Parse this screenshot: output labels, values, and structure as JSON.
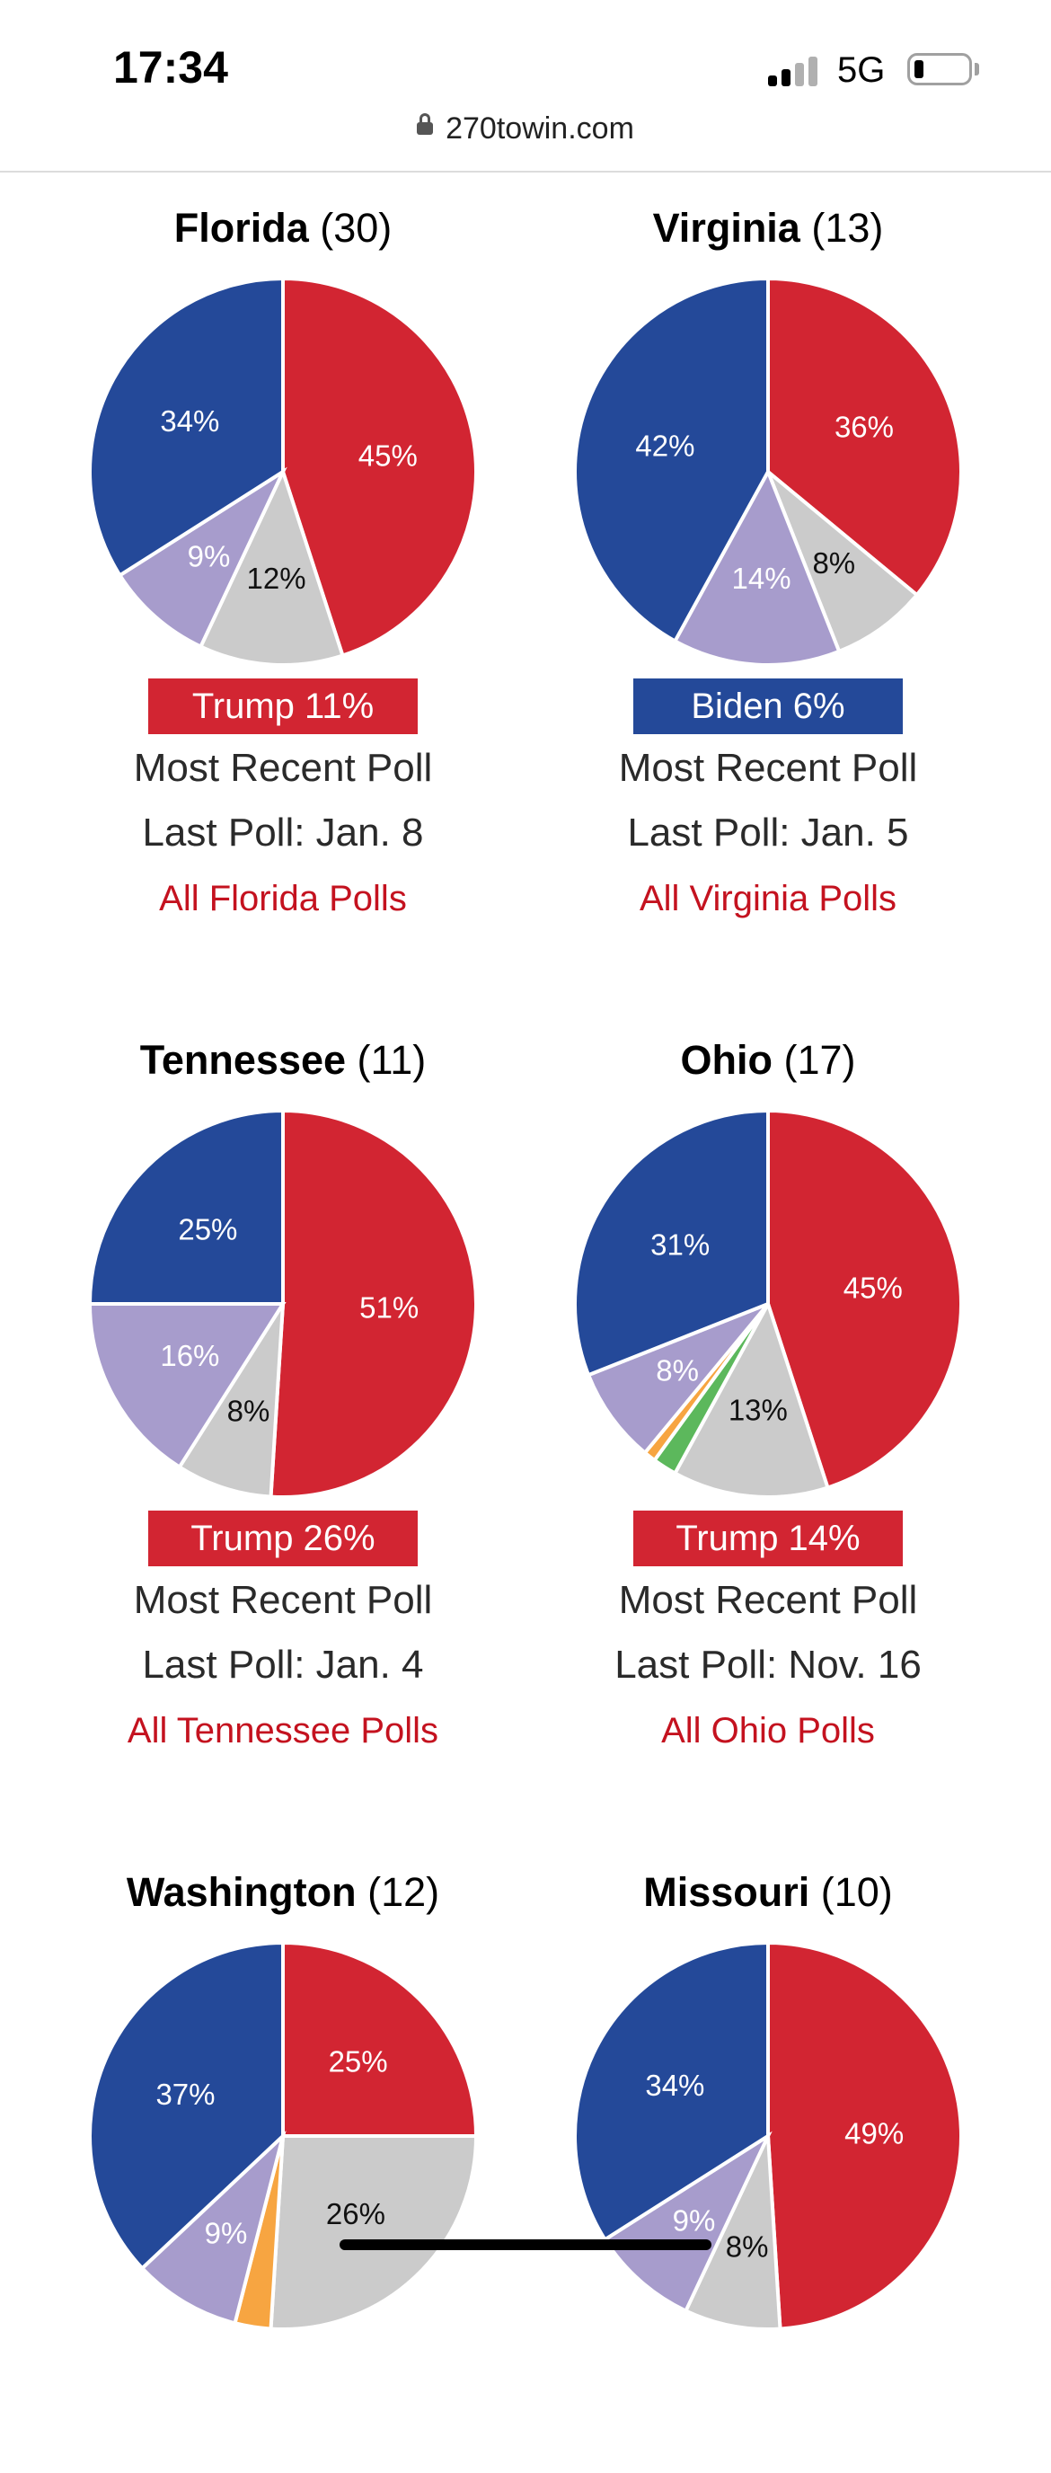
{
  "status": {
    "time": "17:34",
    "network": "5G",
    "battery_icon": "battery-low-icon",
    "signal_icon": "signal-bars-icon"
  },
  "browser": {
    "url": "270towin.com",
    "lock_icon": "lock-icon"
  },
  "colors": {
    "trump": "#d22532",
    "biden": "#244999",
    "undecided": "#cbcbcb",
    "other": "#a79ccc",
    "green": "#5cb85c",
    "orange": "#f7a541"
  },
  "states": [
    {
      "name": "Florida",
      "electoral_votes": "(30)",
      "slices": [
        {
          "party": "trump",
          "value": 45,
          "label": "45%"
        },
        {
          "party": "undecided",
          "value": 12,
          "label": "12%"
        },
        {
          "party": "other",
          "value": 9,
          "label": "9%"
        },
        {
          "party": "biden",
          "value": 34,
          "label": "34%"
        }
      ],
      "badge": "Trump 11%",
      "badge_party": "trump",
      "subtitle": "Most Recent Poll",
      "last_poll": "Last Poll: Jan. 8",
      "link": "All Florida Polls"
    },
    {
      "name": "Virginia",
      "electoral_votes": "(13)",
      "slices": [
        {
          "party": "trump",
          "value": 36,
          "label": "36%"
        },
        {
          "party": "undecided",
          "value": 8,
          "label": "8%"
        },
        {
          "party": "other",
          "value": 14,
          "label": "14%"
        },
        {
          "party": "biden",
          "value": 42,
          "label": "42%"
        }
      ],
      "badge": "Biden 6%",
      "badge_party": "biden",
      "subtitle": "Most Recent Poll",
      "last_poll": "Last Poll: Jan. 5",
      "link": "All Virginia Polls"
    },
    {
      "name": "Tennessee",
      "electoral_votes": "(11)",
      "slices": [
        {
          "party": "trump",
          "value": 51,
          "label": "51%"
        },
        {
          "party": "undecided",
          "value": 8,
          "label": "8%"
        },
        {
          "party": "other",
          "value": 16,
          "label": "16%"
        },
        {
          "party": "biden",
          "value": 25,
          "label": "25%"
        }
      ],
      "badge": "Trump 26%",
      "badge_party": "trump",
      "subtitle": "Most Recent Poll",
      "last_poll": "Last Poll: Jan. 4",
      "link": "All Tennessee Polls"
    },
    {
      "name": "Ohio",
      "electoral_votes": "(17)",
      "slices": [
        {
          "party": "trump",
          "value": 45,
          "label": "45%"
        },
        {
          "party": "undecided",
          "value": 13,
          "label": "13%"
        },
        {
          "party": "green",
          "value": 2,
          "label": ""
        },
        {
          "party": "orange",
          "value": 1,
          "label": ""
        },
        {
          "party": "other",
          "value": 8,
          "label": "8%"
        },
        {
          "party": "biden",
          "value": 31,
          "label": "31%"
        }
      ],
      "badge": "Trump 14%",
      "badge_party": "trump",
      "subtitle": "Most Recent Poll",
      "last_poll": "Last Poll: Nov. 16",
      "link": "All Ohio Polls"
    },
    {
      "name": "Washington",
      "electoral_votes": "(12)",
      "slices": [
        {
          "party": "trump",
          "value": 25,
          "label": "25%"
        },
        {
          "party": "undecided",
          "value": 26,
          "label": "26%"
        },
        {
          "party": "orange",
          "value": 3,
          "label": ""
        },
        {
          "party": "other",
          "value": 9,
          "label": "9%"
        },
        {
          "party": "biden",
          "value": 37,
          "label": "37%"
        }
      ],
      "badge": "",
      "badge_party": "",
      "subtitle": "",
      "last_poll": "",
      "link": ""
    },
    {
      "name": "Missouri",
      "electoral_votes": "(10)",
      "slices": [
        {
          "party": "trump",
          "value": 49,
          "label": "49%"
        },
        {
          "party": "undecided",
          "value": 8,
          "label": "8%"
        },
        {
          "party": "other",
          "value": 9,
          "label": "9%"
        },
        {
          "party": "biden",
          "value": 34,
          "label": "34%"
        }
      ],
      "badge": "",
      "badge_party": "",
      "subtitle": "",
      "last_poll": "",
      "link": ""
    }
  ]
}
